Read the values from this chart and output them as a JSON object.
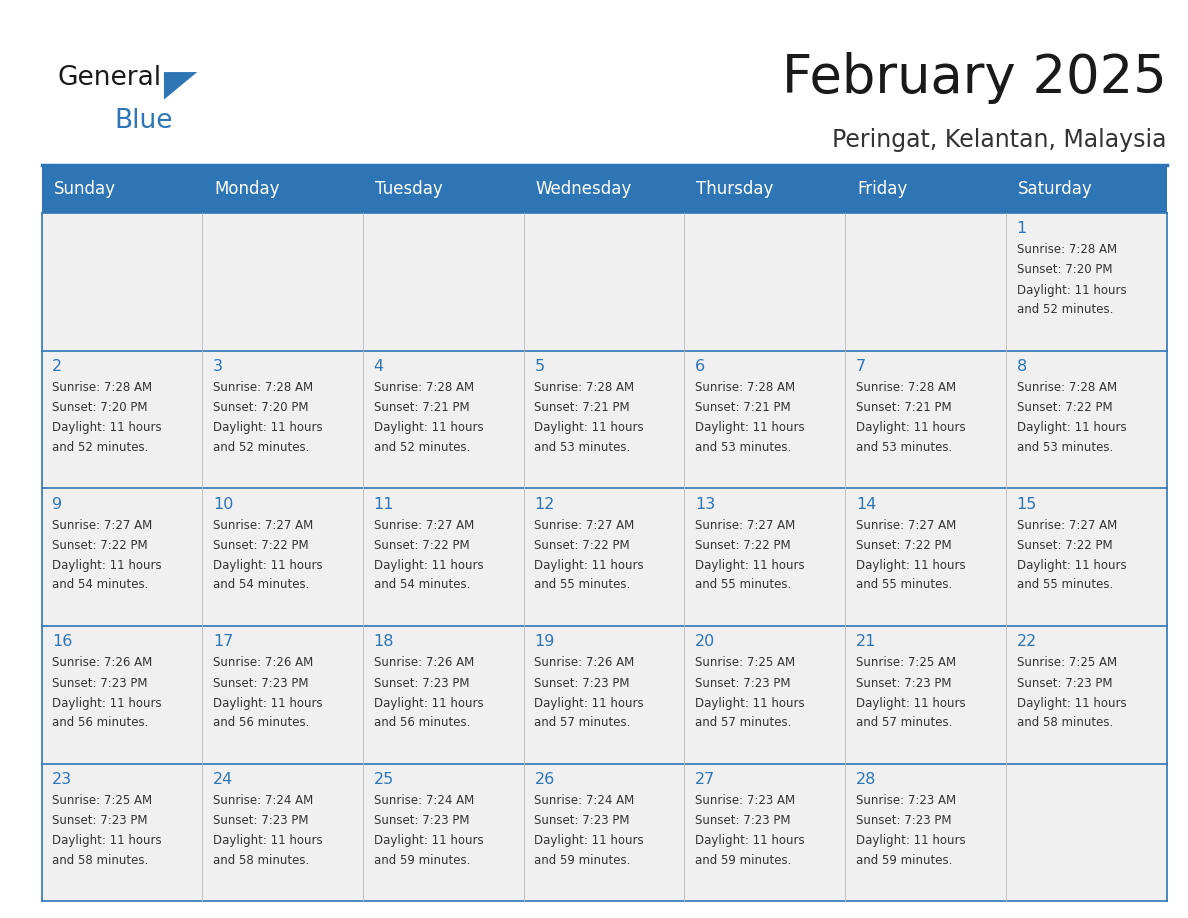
{
  "title": "February 2025",
  "subtitle": "Peringat, Kelantan, Malaysia",
  "header_bg": "#2E75B6",
  "header_text": "#FFFFFF",
  "cell_bg_light": "#F0F0F0",
  "border_color": "#2E75B6",
  "day_headers": [
    "Sunday",
    "Monday",
    "Tuesday",
    "Wednesday",
    "Thursday",
    "Friday",
    "Saturday"
  ],
  "title_color": "#1a1a1a",
  "subtitle_color": "#333333",
  "number_color": "#2E75B6",
  "text_color": "#333333",
  "calendar": [
    [
      null,
      null,
      null,
      null,
      null,
      null,
      {
        "day": 1,
        "sunrise": "7:28 AM",
        "sunset": "7:20 PM",
        "daylight_line1": "Daylight: 11 hours",
        "daylight_line2": "and 52 minutes."
      }
    ],
    [
      {
        "day": 2,
        "sunrise": "7:28 AM",
        "sunset": "7:20 PM",
        "daylight_line1": "Daylight: 11 hours",
        "daylight_line2": "and 52 minutes."
      },
      {
        "day": 3,
        "sunrise": "7:28 AM",
        "sunset": "7:20 PM",
        "daylight_line1": "Daylight: 11 hours",
        "daylight_line2": "and 52 minutes."
      },
      {
        "day": 4,
        "sunrise": "7:28 AM",
        "sunset": "7:21 PM",
        "daylight_line1": "Daylight: 11 hours",
        "daylight_line2": "and 52 minutes."
      },
      {
        "day": 5,
        "sunrise": "7:28 AM",
        "sunset": "7:21 PM",
        "daylight_line1": "Daylight: 11 hours",
        "daylight_line2": "and 53 minutes."
      },
      {
        "day": 6,
        "sunrise": "7:28 AM",
        "sunset": "7:21 PM",
        "daylight_line1": "Daylight: 11 hours",
        "daylight_line2": "and 53 minutes."
      },
      {
        "day": 7,
        "sunrise": "7:28 AM",
        "sunset": "7:21 PM",
        "daylight_line1": "Daylight: 11 hours",
        "daylight_line2": "and 53 minutes."
      },
      {
        "day": 8,
        "sunrise": "7:28 AM",
        "sunset": "7:22 PM",
        "daylight_line1": "Daylight: 11 hours",
        "daylight_line2": "and 53 minutes."
      }
    ],
    [
      {
        "day": 9,
        "sunrise": "7:27 AM",
        "sunset": "7:22 PM",
        "daylight_line1": "Daylight: 11 hours",
        "daylight_line2": "and 54 minutes."
      },
      {
        "day": 10,
        "sunrise": "7:27 AM",
        "sunset": "7:22 PM",
        "daylight_line1": "Daylight: 11 hours",
        "daylight_line2": "and 54 minutes."
      },
      {
        "day": 11,
        "sunrise": "7:27 AM",
        "sunset": "7:22 PM",
        "daylight_line1": "Daylight: 11 hours",
        "daylight_line2": "and 54 minutes."
      },
      {
        "day": 12,
        "sunrise": "7:27 AM",
        "sunset": "7:22 PM",
        "daylight_line1": "Daylight: 11 hours",
        "daylight_line2": "and 55 minutes."
      },
      {
        "day": 13,
        "sunrise": "7:27 AM",
        "sunset": "7:22 PM",
        "daylight_line1": "Daylight: 11 hours",
        "daylight_line2": "and 55 minutes."
      },
      {
        "day": 14,
        "sunrise": "7:27 AM",
        "sunset": "7:22 PM",
        "daylight_line1": "Daylight: 11 hours",
        "daylight_line2": "and 55 minutes."
      },
      {
        "day": 15,
        "sunrise": "7:27 AM",
        "sunset": "7:22 PM",
        "daylight_line1": "Daylight: 11 hours",
        "daylight_line2": "and 55 minutes."
      }
    ],
    [
      {
        "day": 16,
        "sunrise": "7:26 AM",
        "sunset": "7:23 PM",
        "daylight_line1": "Daylight: 11 hours",
        "daylight_line2": "and 56 minutes."
      },
      {
        "day": 17,
        "sunrise": "7:26 AM",
        "sunset": "7:23 PM",
        "daylight_line1": "Daylight: 11 hours",
        "daylight_line2": "and 56 minutes."
      },
      {
        "day": 18,
        "sunrise": "7:26 AM",
        "sunset": "7:23 PM",
        "daylight_line1": "Daylight: 11 hours",
        "daylight_line2": "and 56 minutes."
      },
      {
        "day": 19,
        "sunrise": "7:26 AM",
        "sunset": "7:23 PM",
        "daylight_line1": "Daylight: 11 hours",
        "daylight_line2": "and 57 minutes."
      },
      {
        "day": 20,
        "sunrise": "7:25 AM",
        "sunset": "7:23 PM",
        "daylight_line1": "Daylight: 11 hours",
        "daylight_line2": "and 57 minutes."
      },
      {
        "day": 21,
        "sunrise": "7:25 AM",
        "sunset": "7:23 PM",
        "daylight_line1": "Daylight: 11 hours",
        "daylight_line2": "and 57 minutes."
      },
      {
        "day": 22,
        "sunrise": "7:25 AM",
        "sunset": "7:23 PM",
        "daylight_line1": "Daylight: 11 hours",
        "daylight_line2": "and 58 minutes."
      }
    ],
    [
      {
        "day": 23,
        "sunrise": "7:25 AM",
        "sunset": "7:23 PM",
        "daylight_line1": "Daylight: 11 hours",
        "daylight_line2": "and 58 minutes."
      },
      {
        "day": 24,
        "sunrise": "7:24 AM",
        "sunset": "7:23 PM",
        "daylight_line1": "Daylight: 11 hours",
        "daylight_line2": "and 58 minutes."
      },
      {
        "day": 25,
        "sunrise": "7:24 AM",
        "sunset": "7:23 PM",
        "daylight_line1": "Daylight: 11 hours",
        "daylight_line2": "and 59 minutes."
      },
      {
        "day": 26,
        "sunrise": "7:24 AM",
        "sunset": "7:23 PM",
        "daylight_line1": "Daylight: 11 hours",
        "daylight_line2": "and 59 minutes."
      },
      {
        "day": 27,
        "sunrise": "7:23 AM",
        "sunset": "7:23 PM",
        "daylight_line1": "Daylight: 11 hours",
        "daylight_line2": "and 59 minutes."
      },
      {
        "day": 28,
        "sunrise": "7:23 AM",
        "sunset": "7:23 PM",
        "daylight_line1": "Daylight: 11 hours",
        "daylight_line2": "and 59 minutes."
      },
      null
    ]
  ]
}
